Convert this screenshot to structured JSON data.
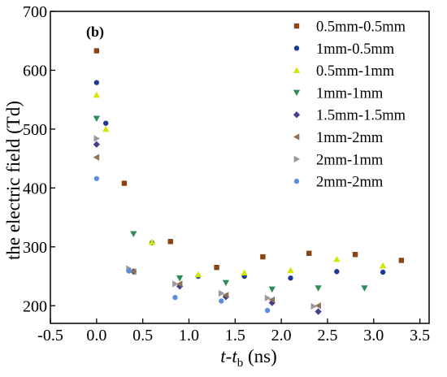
{
  "chart_data": {
    "type": "scatter",
    "panel_label": "(b)",
    "xlabel": {
      "italic": "t",
      "mid": "-",
      "italic2": "t",
      "sub": "b",
      "unit": " (ns)"
    },
    "ylabel": "the electric field (Td)",
    "xlim": [
      -0.5,
      3.6
    ],
    "ylim": [
      170,
      700
    ],
    "xticks": [
      -0.5,
      0.0,
      0.5,
      1.0,
      1.5,
      2.0,
      2.5,
      3.0,
      3.5
    ],
    "xtick_labels": [
      "-0.5",
      "0.0",
      "0.5",
      "1.0",
      "1.5",
      "2.0",
      "2.5",
      "3.0",
      "3.5"
    ],
    "yticks": [
      200,
      300,
      400,
      500,
      600,
      700
    ],
    "ytick_labels": [
      "200",
      "300",
      "400",
      "500",
      "600",
      "700"
    ],
    "legend_position": "top-right",
    "series": [
      {
        "name": "0.5mm-0.5mm",
        "marker": "square",
        "color": "#8b4513",
        "x": [
          0.0,
          0.3,
          0.8,
          1.3,
          1.8,
          2.3,
          2.8,
          3.3
        ],
        "y": [
          633,
          408,
          309,
          265,
          283,
          289,
          287,
          277
        ]
      },
      {
        "name": "1mm-0.5mm",
        "marker": "circle",
        "color": "#1f3a93",
        "x": [
          0.0,
          0.1,
          0.6,
          1.1,
          1.6,
          2.1,
          2.6,
          3.1
        ],
        "y": [
          579,
          510,
          307,
          250,
          250,
          247,
          258,
          257
        ]
      },
      {
        "name": "0.5mm-1mm",
        "marker": "triangle-up",
        "color": "#d4e600",
        "x": [
          0.0,
          0.1,
          0.6,
          1.1,
          1.6,
          2.1,
          2.6,
          3.1
        ],
        "y": [
          558,
          500,
          308,
          253,
          256,
          260,
          279,
          268
        ]
      },
      {
        "name": "1mm-1mm",
        "marker": "triangle-down",
        "color": "#2e8b57",
        "x": [
          0.0,
          0.4,
          0.9,
          1.4,
          1.9,
          2.4,
          2.9
        ],
        "y": [
          518,
          322,
          247,
          239,
          228,
          230,
          230
        ]
      },
      {
        "name": "1.5mm-1.5mm",
        "marker": "diamond",
        "color": "#483d8b",
        "x": [
          0.0,
          0.4,
          0.9,
          1.4,
          1.9,
          2.4
        ],
        "y": [
          474,
          258,
          233,
          215,
          205,
          190
        ]
      },
      {
        "name": "1mm-2mm",
        "marker": "triangle-left",
        "color": "#8b7355",
        "x": [
          0.0,
          0.4,
          0.9,
          1.4,
          1.9,
          2.4
        ],
        "y": [
          452,
          258,
          237,
          218,
          210,
          200
        ]
      },
      {
        "name": "2mm-1mm",
        "marker": "triangle-right",
        "color": "#9a9a9a",
        "x": [
          0.0,
          0.35,
          0.85,
          1.35,
          1.85,
          2.35
        ],
        "y": [
          484,
          263,
          237,
          221,
          213,
          199
        ]
      },
      {
        "name": "2mm-2mm",
        "marker": "circle",
        "color": "#5b8fd9",
        "x": [
          0.0,
          0.35,
          0.85,
          1.35,
          1.85
        ],
        "y": [
          416,
          259,
          214,
          208,
          192
        ]
      }
    ]
  }
}
